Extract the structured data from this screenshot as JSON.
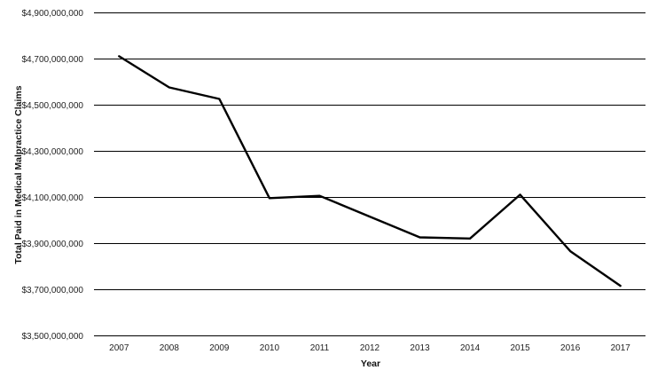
{
  "chart_data": {
    "type": "line",
    "title": "",
    "xlabel": "Year",
    "ylabel": "Total Paid in Medical Malpractice Claims",
    "categories": [
      "2007",
      "2008",
      "2009",
      "2010",
      "2011",
      "2012",
      "2013",
      "2014",
      "2015",
      "2016",
      "2017"
    ],
    "series": [
      {
        "values": [
          4710000000,
          4575000000,
          4525000000,
          4095000000,
          4105000000,
          4015000000,
          3925000000,
          3920000000,
          4110000000,
          3865000000,
          3715000000
        ]
      }
    ],
    "ylim": [
      3500000000,
      4900000000
    ],
    "yticks": [
      3500000000,
      3700000000,
      3900000000,
      4100000000,
      4300000000,
      4500000000,
      4700000000,
      4900000000
    ],
    "ytick_labels": [
      "$3,500,000,000",
      "$3,700,000,000",
      "$3,900,000,000",
      "$4,100,000,000",
      "$4,300,000,000",
      "$4,500,000,000",
      "$4,700,000,000",
      "$4,900,000,000"
    ],
    "grid": true,
    "legend": "none",
    "colors": {
      "line": "#000000",
      "grid": "#000000"
    }
  }
}
